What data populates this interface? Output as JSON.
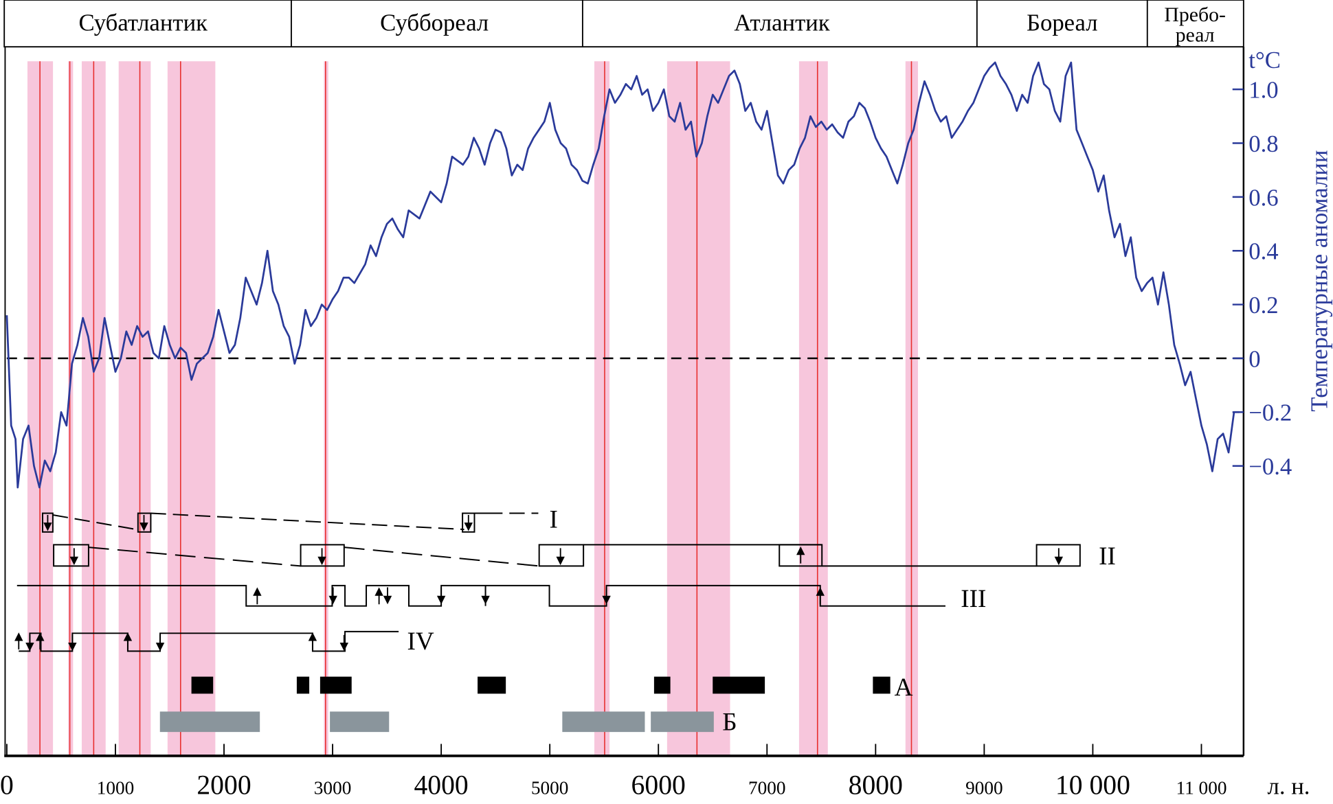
{
  "chart_data": {
    "type": "line",
    "periods": [
      "Субатлантик",
      "Суббореал",
      "Атлантик",
      "Бореал",
      "Пребо-",
      "реал"
    ],
    "ylabel": "Температурные аномалии",
    "yunit": "t°C",
    "ylim": [
      -0.5,
      1.1
    ],
    "yticks": [
      "1.0",
      "0.8",
      "0.6",
      "0.4",
      "0.2",
      "0",
      "−0.2",
      "−0.4"
    ],
    "ytick_values": [
      1.0,
      0.8,
      0.6,
      0.4,
      0.2,
      0,
      -0.2,
      -0.4
    ],
    "xlim": [
      0,
      11400
    ],
    "xticks": [
      "0",
      "1000",
      "2000",
      "3000",
      "4000",
      "5000",
      "6000",
      "7000",
      "8000",
      "9000",
      "10 000",
      "11 000"
    ],
    "xtick_values": [
      0,
      1000,
      2000,
      3000,
      4000,
      5000,
      6000,
      7000,
      8000,
      9000,
      10000,
      11000
    ],
    "xlabel": "л. н.",
    "zero_line": "dashed",
    "colors": {
      "curve": "#2a3a9a",
      "band": "#f7c6dc",
      "redline": "#e83030",
      "barA": "#000000",
      "barB": "#8a959c"
    },
    "series": [
      {
        "name": "temperature anomaly",
        "x": [
          0,
          40,
          80,
          100,
          150,
          200,
          250,
          300,
          350,
          400,
          450,
          500,
          550,
          600,
          650,
          700,
          750,
          800,
          850,
          900,
          950,
          1000,
          1050,
          1100,
          1150,
          1200,
          1250,
          1300,
          1350,
          1400,
          1450,
          1500,
          1550,
          1600,
          1650,
          1700,
          1750,
          1800,
          1850,
          1900,
          1950,
          2000,
          2050,
          2100,
          2150,
          2200,
          2250,
          2300,
          2350,
          2400,
          2450,
          2500,
          2550,
          2600,
          2650,
          2700,
          2750,
          2800,
          2850,
          2900,
          2950,
          3000,
          3050,
          3100,
          3150,
          3200,
          3300,
          3350,
          3400,
          3450,
          3500,
          3550,
          3600,
          3650,
          3700,
          3800,
          3900,
          4000,
          4050,
          4100,
          4200,
          4250,
          4300,
          4350,
          4400,
          4450,
          4500,
          4550,
          4600,
          4650,
          4700,
          4750,
          4800,
          4850,
          4900,
          4950,
          5000,
          5050,
          5100,
          5150,
          5200,
          5250,
          5300,
          5350,
          5400,
          5450,
          5500,
          5550,
          5600,
          5650,
          5700,
          5750,
          5800,
          5850,
          5900,
          5950,
          6000,
          6050,
          6100,
          6150,
          6200,
          6250,
          6300,
          6350,
          6400,
          6450,
          6500,
          6550,
          6600,
          6650,
          6700,
          6750,
          6800,
          6850,
          6900,
          6950,
          7000,
          7050,
          7100,
          7150,
          7200,
          7250,
          7300,
          7350,
          7400,
          7450,
          7500,
          7550,
          7600,
          7650,
          7700,
          7750,
          7800,
          7850,
          7900,
          7950,
          8000,
          8050,
          8100,
          8150,
          8200,
          8250,
          8300,
          8350,
          8400,
          8450,
          8500,
          8550,
          8600,
          8650,
          8700,
          8750,
          8800,
          8850,
          8900,
          8950,
          9000,
          9050,
          9100,
          9150,
          9200,
          9250,
          9300,
          9350,
          9400,
          9450,
          9500,
          9550,
          9600,
          9650,
          9700,
          9750,
          9800,
          9850,
          9900,
          9950,
          10000,
          10050,
          10100,
          10150,
          10200,
          10250,
          10300,
          10350,
          10400,
          10450,
          10500,
          10550,
          10600,
          10650,
          10700,
          10750,
          10800,
          10850,
          10900,
          10950,
          11000,
          11050,
          11100,
          11150,
          11200,
          11250,
          11300,
          11350
        ],
        "y": [
          0.16,
          -0.25,
          -0.3,
          -0.48,
          -0.3,
          -0.25,
          -0.4,
          -0.48,
          -0.38,
          -0.42,
          -0.35,
          -0.2,
          -0.25,
          -0.02,
          0.05,
          0.15,
          0.08,
          -0.05,
          0.0,
          0.15,
          0.05,
          -0.05,
          0.0,
          0.1,
          0.05,
          0.12,
          0.08,
          0.1,
          0.02,
          0.0,
          0.12,
          0.05,
          0.0,
          0.04,
          0.02,
          -0.08,
          -0.02,
          0.0,
          0.02,
          0.08,
          0.18,
          0.1,
          0.02,
          0.05,
          0.15,
          0.3,
          0.25,
          0.2,
          0.28,
          0.4,
          0.25,
          0.2,
          0.12,
          0.08,
          -0.02,
          0.05,
          0.18,
          0.12,
          0.15,
          0.2,
          0.18,
          0.22,
          0.25,
          0.3,
          0.3,
          0.28,
          0.35,
          0.42,
          0.38,
          0.45,
          0.5,
          0.52,
          0.48,
          0.45,
          0.55,
          0.52,
          0.62,
          0.58,
          0.65,
          0.75,
          0.72,
          0.75,
          0.82,
          0.78,
          0.72,
          0.8,
          0.85,
          0.84,
          0.78,
          0.68,
          0.72,
          0.7,
          0.78,
          0.82,
          0.85,
          0.88,
          0.95,
          0.85,
          0.8,
          0.78,
          0.72,
          0.7,
          0.66,
          0.65,
          0.72,
          0.78,
          0.9,
          1.0,
          0.95,
          0.98,
          1.02,
          1.0,
          1.05,
          0.98,
          1.0,
          0.92,
          0.95,
          1.0,
          0.9,
          0.88,
          0.95,
          0.85,
          0.88,
          0.75,
          0.8,
          0.9,
          0.98,
          0.95,
          1.0,
          1.05,
          1.07,
          1.02,
          0.92,
          0.95,
          0.88,
          0.85,
          0.92,
          0.8,
          0.68,
          0.65,
          0.7,
          0.72,
          0.78,
          0.82,
          0.9,
          0.86,
          0.88,
          0.85,
          0.87,
          0.84,
          0.82,
          0.88,
          0.9,
          0.95,
          0.93,
          0.88,
          0.82,
          0.78,
          0.75,
          0.7,
          0.65,
          0.72,
          0.8,
          0.85,
          0.95,
          1.03,
          0.98,
          0.92,
          0.88,
          0.9,
          0.82,
          0.85,
          0.88,
          0.92,
          0.95,
          1.0,
          1.05,
          1.08,
          1.1,
          1.05,
          1.02,
          0.98,
          0.92,
          0.98,
          0.95,
          1.05,
          1.1,
          1.02,
          1.0,
          0.92,
          0.88,
          1.05,
          1.1,
          0.85,
          0.8,
          0.75,
          0.7,
          0.62,
          0.68,
          0.55,
          0.45,
          0.5,
          0.38,
          0.45,
          0.3,
          0.25,
          0.28,
          0.3,
          0.2,
          0.32,
          0.2,
          0.05,
          -0.02,
          -0.1,
          -0.05,
          -0.15,
          -0.25,
          -0.32,
          -0.42,
          -0.3,
          -0.28,
          -0.35,
          -0.2,
          -0.2
        ]
      }
    ],
    "pink_bands": [
      [
        190,
        425
      ],
      [
        565,
        610
      ],
      [
        690,
        910
      ],
      [
        1030,
        1325
      ],
      [
        1480,
        1920
      ],
      [
        2920,
        2960
      ],
      [
        5410,
        5550
      ],
      [
        6080,
        6660
      ],
      [
        7295,
        7560
      ],
      [
        8275,
        8390
      ]
    ],
    "red_lines": [
      305,
      580,
      800,
      1225,
      1600,
      2935,
      5505,
      6355,
      7465,
      8330
    ],
    "bars_A": [
      [
        1700,
        1900
      ],
      [
        2670,
        2785
      ],
      [
        2885,
        3175
      ],
      [
        4335,
        4595
      ],
      [
        5960,
        6110
      ],
      [
        6500,
        6980
      ],
      [
        7975,
        8135
      ]
    ],
    "bars_B": [
      [
        1410,
        2330
      ],
      [
        2975,
        3520
      ],
      [
        5115,
        5875
      ],
      [
        5930,
        6510
      ]
    ],
    "row_labels": {
      "I": "I",
      "II": "II",
      "III": "III",
      "IV": "IV",
      "A": "А",
      "B": "Б"
    }
  }
}
